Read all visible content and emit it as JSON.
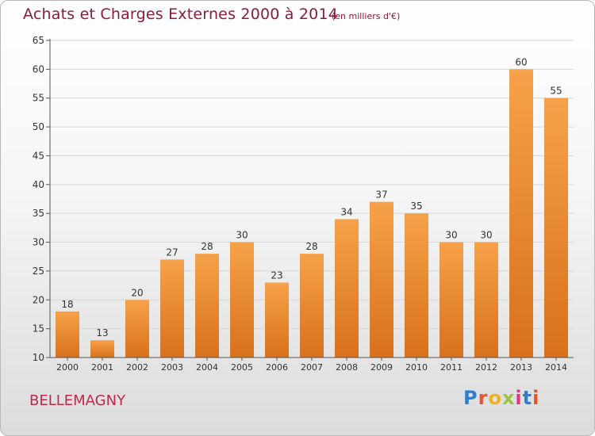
{
  "header": {
    "title": "Achats et Charges Externes 2000 à 2014",
    "subtitle": "(en milliers d'€)"
  },
  "footer": {
    "commune": "BELLEMAGNY",
    "logo_letters": [
      "P",
      "r",
      "o",
      "x",
      "i",
      "t",
      "i"
    ],
    "logo_colors": [
      "#2e7fcf",
      "#e8532b",
      "#f2b01e",
      "#9bc53d",
      "#e6338a",
      "#2e7fcf",
      "#e8532b"
    ]
  },
  "colors": {
    "bar_top": "#f6a24a",
    "bar_bottom": "#d8701c",
    "axis": "#555555",
    "grid": "#d6d6d6",
    "text": "#333333"
  },
  "chart_data": {
    "type": "bar",
    "categories": [
      "2000",
      "2001",
      "2002",
      "2003",
      "2004",
      "2005",
      "2006",
      "2007",
      "2008",
      "2009",
      "2010",
      "2011",
      "2012",
      "2013",
      "2014"
    ],
    "values": [
      18,
      13,
      20,
      27,
      28,
      30,
      23,
      28,
      34,
      37,
      35,
      30,
      30,
      60,
      55
    ],
    "ylim": [
      10,
      65
    ],
    "yticks": [
      10,
      15,
      20,
      25,
      30,
      35,
      40,
      45,
      50,
      55,
      60,
      65
    ],
    "grid": true,
    "xlabel": "",
    "ylabel": ""
  }
}
